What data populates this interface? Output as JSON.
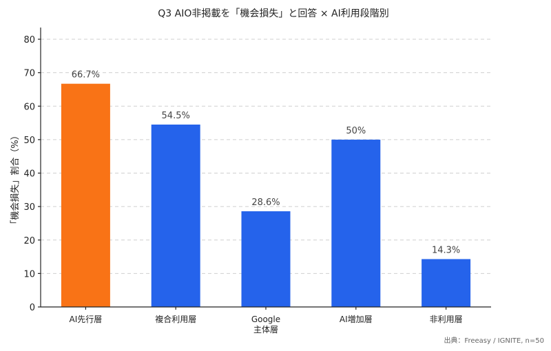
{
  "chart_data": {
    "type": "bar",
    "title": "Q3 AIO非掲載を「機会損失」と回答 × AI利用段階別",
    "ylabel": "「機会損失」割合（%）",
    "xlabel": "",
    "categories": [
      [
        "AI先行層"
      ],
      [
        "複合利用層"
      ],
      [
        "Google",
        "主体層"
      ],
      [
        "AI増加層"
      ],
      [
        "非利用層"
      ]
    ],
    "values": [
      66.7,
      54.5,
      28.6,
      50,
      14.3
    ],
    "value_labels": [
      "66.7%",
      "54.5%",
      "28.6%",
      "50%",
      "14.3%"
    ],
    "colors": [
      "#f97316",
      "#2563eb",
      "#2563eb",
      "#2563eb",
      "#2563eb"
    ],
    "ylim": [
      0,
      80
    ],
    "yticks": [
      0,
      10,
      20,
      30,
      40,
      50,
      60,
      70,
      80
    ],
    "grid": true,
    "source": "出典：Freeasy / IGNITE, n=50"
  }
}
